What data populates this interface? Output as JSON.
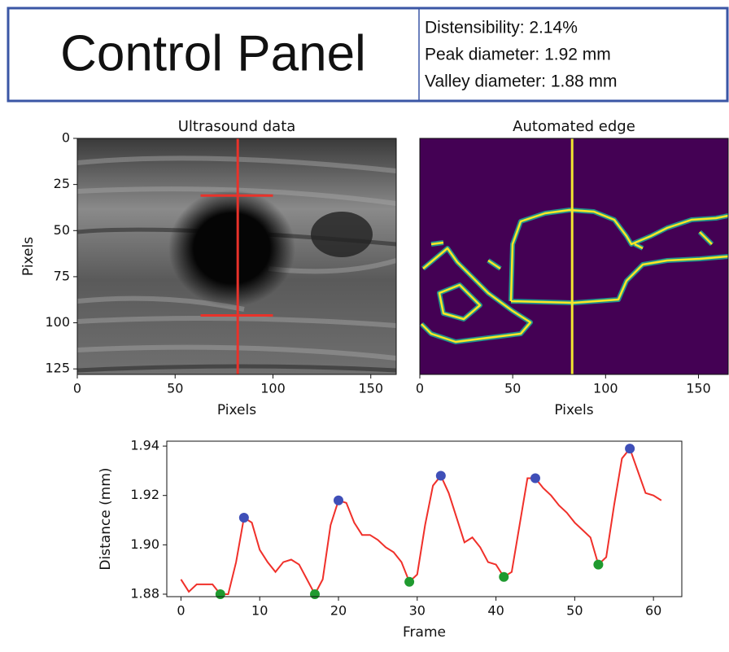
{
  "header": {
    "title": "Control Panel",
    "stats": [
      "Distensibility: 2.14%",
      "Peak diameter: 1.92 mm",
      "Valley diameter: 1.88 mm"
    ]
  },
  "chart_data": [
    {
      "type": "image",
      "title": "Ultrasound data",
      "x_label": "Pixels",
      "y_label": "Pixels",
      "xlim": [
        0,
        163
      ],
      "ylim": [
        128,
        0
      ],
      "xticks": [
        0,
        50,
        100,
        150
      ],
      "yticks": [
        0,
        25,
        50,
        75,
        100,
        125
      ],
      "vertical_line": 82,
      "horizontal_lines": [
        31,
        96
      ],
      "horizontal_extent": [
        63,
        100
      ],
      "line_color": "#e8322a",
      "colormap": "gray"
    },
    {
      "type": "image",
      "title": "Automated edge",
      "x_label": "Pixels",
      "xlim": [
        0,
        166
      ],
      "ylim": [
        128,
        0
      ],
      "xticks": [
        0,
        50,
        100,
        150
      ],
      "vertical_line": 82,
      "line_color": "#f2e630",
      "colormap": "viridis"
    },
    {
      "type": "line",
      "x_label": "Frame",
      "y_label": "Distance (mm)",
      "xlim": [
        -1.8,
        63.6
      ],
      "ylim": [
        1.879,
        1.942
      ],
      "xticks": [
        0,
        10,
        20,
        30,
        40,
        50,
        60
      ],
      "yticks": [
        1.88,
        {
          "value": 1.9,
          "label": "1.90"
        },
        1.92,
        1.94
      ],
      "x": [
        0,
        1,
        2,
        3,
        4,
        5,
        6,
        7,
        8,
        9,
        10,
        11,
        12,
        13,
        14,
        15,
        16,
        17,
        18,
        19,
        20,
        21,
        22,
        23,
        24,
        25,
        26,
        27,
        28,
        29,
        30,
        31,
        32,
        33,
        34,
        35,
        36,
        37,
        38,
        39,
        40,
        41,
        42,
        43,
        44,
        45,
        46,
        47,
        48,
        49,
        50,
        51,
        52,
        53,
        54,
        55,
        56,
        57,
        58,
        59,
        60,
        61
      ],
      "series": [
        {
          "color": "#f0302a",
          "values": [
            1.886,
            1.881,
            1.884,
            1.884,
            1.884,
            1.88,
            1.88,
            1.893,
            1.911,
            1.909,
            1.898,
            1.893,
            1.889,
            1.893,
            1.894,
            1.892,
            1.886,
            1.88,
            1.886,
            1.908,
            1.918,
            1.917,
            1.909,
            1.904,
            1.904,
            1.902,
            1.899,
            1.897,
            1.893,
            1.885,
            1.888,
            1.908,
            1.924,
            1.928,
            1.921,
            1.911,
            1.901,
            1.903,
            1.899,
            1.893,
            1.892,
            1.887,
            1.889,
            1.908,
            1.927,
            1.927,
            1.923,
            1.92,
            1.916,
            1.913,
            1.909,
            1.906,
            1.903,
            1.892,
            1.895,
            1.916,
            1.935,
            1.939,
            1.93,
            1.921,
            1.92,
            1.918
          ]
        }
      ],
      "peaks": {
        "color": "#3f4fb8",
        "x": [
          8,
          20,
          33,
          45,
          57
        ],
        "values": [
          1.911,
          1.918,
          1.928,
          1.927,
          1.939
        ]
      },
      "valleys": {
        "color": "#1f9a2f",
        "x": [
          5,
          17,
          29,
          41,
          53
        ],
        "values": [
          1.88,
          1.88,
          1.885,
          1.887,
          1.892
        ]
      }
    }
  ]
}
